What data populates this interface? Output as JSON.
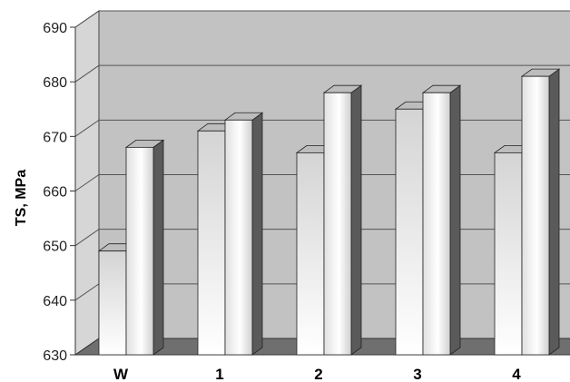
{
  "chart_data": {
    "type": "bar",
    "style": "3d-clustered",
    "categories": [
      "W",
      "1",
      "2",
      "3",
      "4"
    ],
    "series": [
      {
        "values": [
          649,
          671,
          667,
          675,
          667
        ]
      },
      {
        "values": [
          668,
          673,
          678,
          678,
          681
        ]
      }
    ],
    "ylabel": "TS, MPa",
    "xlabel": "",
    "ylim": [
      630,
      690
    ],
    "yticks": [
      630,
      640,
      650,
      660,
      670,
      680,
      690
    ],
    "grid": true,
    "legend": "none",
    "colors": {
      "back_wall": "#c2c2c2",
      "side_wall": "#d6d6d6",
      "floor": "#6f6f6f",
      "gridline": "#555555",
      "bar_dark": "#d8d8d8",
      "bar_light": "#ffffff",
      "bar_side": "#5a5a5a",
      "bar_top": "#bdbdbd"
    }
  }
}
